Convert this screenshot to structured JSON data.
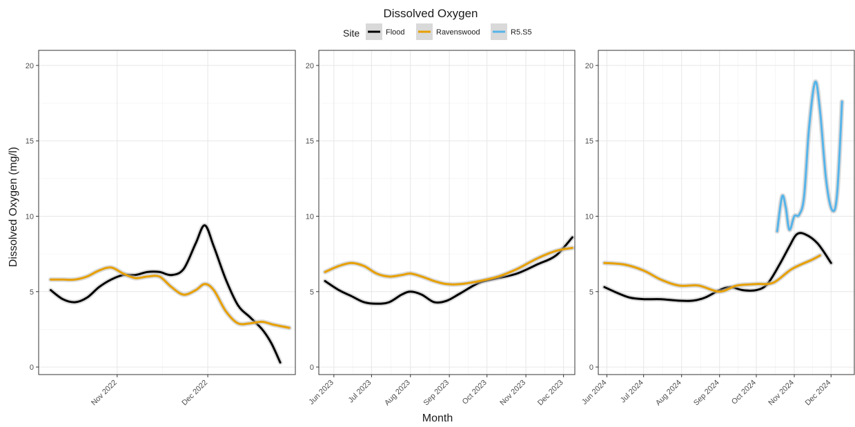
{
  "chart_data": {
    "type": "line",
    "title": "Dissolved Oxygen",
    "xlabel": "Month",
    "ylabel": "Dissolved Oxygen (mg/l)",
    "ylim": [
      -0.5,
      21
    ],
    "y_ticks": [
      0,
      5,
      10,
      15,
      20
    ],
    "legend": {
      "title": "Site",
      "position": "top",
      "entries": [
        {
          "name": "Flood",
          "color": "#000000"
        },
        {
          "name": "Ravenswood",
          "color": "#E69F00"
        },
        {
          "name": "R5.S5",
          "color": "#56B4E9"
        }
      ]
    },
    "panels": [
      {
        "xlim": [
          "2022-10-06",
          "2022-12-30"
        ],
        "x_ticks": [
          "2022-11-01",
          "2022-12-01"
        ],
        "x_tick_labels": [
          "Nov 2022",
          "Dec 2022"
        ],
        "series": [
          {
            "name": "Flood",
            "points": [
              [
                "2022-10-10",
                5.1
              ],
              [
                "2022-10-14",
                4.5
              ],
              [
                "2022-10-18",
                4.3
              ],
              [
                "2022-10-22",
                4.6
              ],
              [
                "2022-10-26",
                5.3
              ],
              [
                "2022-10-30",
                5.8
              ],
              [
                "2022-11-03",
                6.1
              ],
              [
                "2022-11-07",
                6.1
              ],
              [
                "2022-11-11",
                6.3
              ],
              [
                "2022-11-15",
                6.3
              ],
              [
                "2022-11-19",
                6.1
              ],
              [
                "2022-11-23",
                6.5
              ],
              [
                "2022-11-27",
                8.2
              ],
              [
                "2022-11-30",
                9.4
              ],
              [
                "2022-12-03",
                8.0
              ],
              [
                "2022-12-07",
                5.8
              ],
              [
                "2022-12-11",
                4.1
              ],
              [
                "2022-12-15",
                3.3
              ],
              [
                "2022-12-19",
                2.5
              ],
              [
                "2022-12-22",
                1.6
              ],
              [
                "2022-12-25",
                0.3
              ]
            ]
          },
          {
            "name": "Ravenswood",
            "points": [
              [
                "2022-10-10",
                5.8
              ],
              [
                "2022-10-14",
                5.8
              ],
              [
                "2022-10-18",
                5.8
              ],
              [
                "2022-10-22",
                6.0
              ],
              [
                "2022-10-26",
                6.4
              ],
              [
                "2022-10-30",
                6.6
              ],
              [
                "2022-11-03",
                6.2
              ],
              [
                "2022-11-07",
                5.9
              ],
              [
                "2022-11-11",
                6.0
              ],
              [
                "2022-11-15",
                6.0
              ],
              [
                "2022-11-19",
                5.3
              ],
              [
                "2022-11-23",
                4.8
              ],
              [
                "2022-11-27",
                5.1
              ],
              [
                "2022-11-30",
                5.5
              ],
              [
                "2022-12-03",
                5.1
              ],
              [
                "2022-12-07",
                3.7
              ],
              [
                "2022-12-11",
                2.9
              ],
              [
                "2022-12-15",
                2.9
              ],
              [
                "2022-12-19",
                3.0
              ],
              [
                "2022-12-23",
                2.8
              ],
              [
                "2022-12-28",
                2.6
              ]
            ]
          }
        ]
      },
      {
        "xlim": [
          "2023-05-20",
          "2023-12-10"
        ],
        "x_ticks": [
          "2023-06-01",
          "2023-07-01",
          "2023-08-01",
          "2023-09-01",
          "2023-10-01",
          "2023-11-01",
          "2023-12-01"
        ],
        "x_tick_labels": [
          "Jun 2023",
          "Jul 2023",
          "Aug 2023",
          "Sep 2023",
          "Oct 2023",
          "Nov 2023",
          "Dec 2023"
        ],
        "series": [
          {
            "name": "Flood",
            "points": [
              [
                "2023-05-25",
                5.7
              ],
              [
                "2023-06-05",
                5.1
              ],
              [
                "2023-06-15",
                4.7
              ],
              [
                "2023-06-25",
                4.3
              ],
              [
                "2023-07-05",
                4.2
              ],
              [
                "2023-07-15",
                4.3
              ],
              [
                "2023-07-25",
                4.8
              ],
              [
                "2023-08-01",
                5.0
              ],
              [
                "2023-08-10",
                4.8
              ],
              [
                "2023-08-20",
                4.3
              ],
              [
                "2023-08-30",
                4.4
              ],
              [
                "2023-09-10",
                4.9
              ],
              [
                "2023-09-25",
                5.6
              ],
              [
                "2023-10-10",
                5.9
              ],
              [
                "2023-10-25",
                6.2
              ],
              [
                "2023-11-10",
                6.8
              ],
              [
                "2023-11-25",
                7.4
              ],
              [
                "2023-12-08",
                8.6
              ]
            ]
          },
          {
            "name": "Ravenswood",
            "points": [
              [
                "2023-05-25",
                6.3
              ],
              [
                "2023-06-05",
                6.7
              ],
              [
                "2023-06-15",
                6.9
              ],
              [
                "2023-06-25",
                6.7
              ],
              [
                "2023-07-05",
                6.2
              ],
              [
                "2023-07-15",
                6.0
              ],
              [
                "2023-07-25",
                6.1
              ],
              [
                "2023-08-01",
                6.2
              ],
              [
                "2023-08-10",
                6.0
              ],
              [
                "2023-08-20",
                5.7
              ],
              [
                "2023-08-30",
                5.5
              ],
              [
                "2023-09-10",
                5.5
              ],
              [
                "2023-09-25",
                5.7
              ],
              [
                "2023-10-10",
                6.0
              ],
              [
                "2023-10-25",
                6.5
              ],
              [
                "2023-11-10",
                7.2
              ],
              [
                "2023-11-25",
                7.7
              ],
              [
                "2023-12-08",
                7.9
              ]
            ]
          }
        ]
      },
      {
        "xlim": [
          "2024-05-25",
          "2024-12-20"
        ],
        "x_ticks": [
          "2024-06-01",
          "2024-07-01",
          "2024-08-01",
          "2024-09-01",
          "2024-10-01",
          "2024-11-01",
          "2024-12-01"
        ],
        "x_tick_labels": [
          "Jun 2024",
          "Jul 2024",
          "Aug 2024",
          "Sep 2024",
          "Oct 2024",
          "Nov 2024",
          "Dec 2024"
        ],
        "series": [
          {
            "name": "Flood",
            "points": [
              [
                "2024-05-30",
                5.3
              ],
              [
                "2024-06-10",
                4.9
              ],
              [
                "2024-06-20",
                4.6
              ],
              [
                "2024-07-01",
                4.5
              ],
              [
                "2024-07-15",
                4.5
              ],
              [
                "2024-07-30",
                4.4
              ],
              [
                "2024-08-10",
                4.4
              ],
              [
                "2024-08-20",
                4.6
              ],
              [
                "2024-09-01",
                5.1
              ],
              [
                "2024-09-10",
                5.3
              ],
              [
                "2024-09-20",
                5.1
              ],
              [
                "2024-10-01",
                5.1
              ],
              [
                "2024-10-10",
                5.5
              ],
              [
                "2024-10-20",
                6.8
              ],
              [
                "2024-10-28",
                8.0
              ],
              [
                "2024-11-03",
                8.8
              ],
              [
                "2024-11-10",
                8.8
              ],
              [
                "2024-11-20",
                8.2
              ],
              [
                "2024-12-01",
                6.9
              ]
            ]
          },
          {
            "name": "Ravenswood",
            "points": [
              [
                "2024-05-30",
                6.9
              ],
              [
                "2024-06-15",
                6.8
              ],
              [
                "2024-07-01",
                6.4
              ],
              [
                "2024-07-15",
                5.8
              ],
              [
                "2024-07-30",
                5.4
              ],
              [
                "2024-08-15",
                5.4
              ],
              [
                "2024-09-01",
                5.0
              ],
              [
                "2024-09-15",
                5.4
              ],
              [
                "2024-10-01",
                5.5
              ],
              [
                "2024-10-15",
                5.6
              ],
              [
                "2024-10-30",
                6.5
              ],
              [
                "2024-11-15",
                7.1
              ],
              [
                "2024-11-22",
                7.4
              ]
            ]
          },
          {
            "name": "R5.S5",
            "points": [
              [
                "2024-10-18",
                9.0
              ],
              [
                "2024-10-22",
                11.3
              ],
              [
                "2024-10-25",
                10.6
              ],
              [
                "2024-10-28",
                9.1
              ],
              [
                "2024-11-01",
                10.0
              ],
              [
                "2024-11-05",
                10.1
              ],
              [
                "2024-11-09",
                11.3
              ],
              [
                "2024-11-13",
                15.8
              ],
              [
                "2024-11-18",
                18.9
              ],
              [
                "2024-11-22",
                17.0
              ],
              [
                "2024-11-27",
                12.4
              ],
              [
                "2024-12-02",
                10.4
              ],
              [
                "2024-12-06",
                11.5
              ],
              [
                "2024-12-10",
                17.6
              ]
            ]
          }
        ]
      }
    ]
  }
}
